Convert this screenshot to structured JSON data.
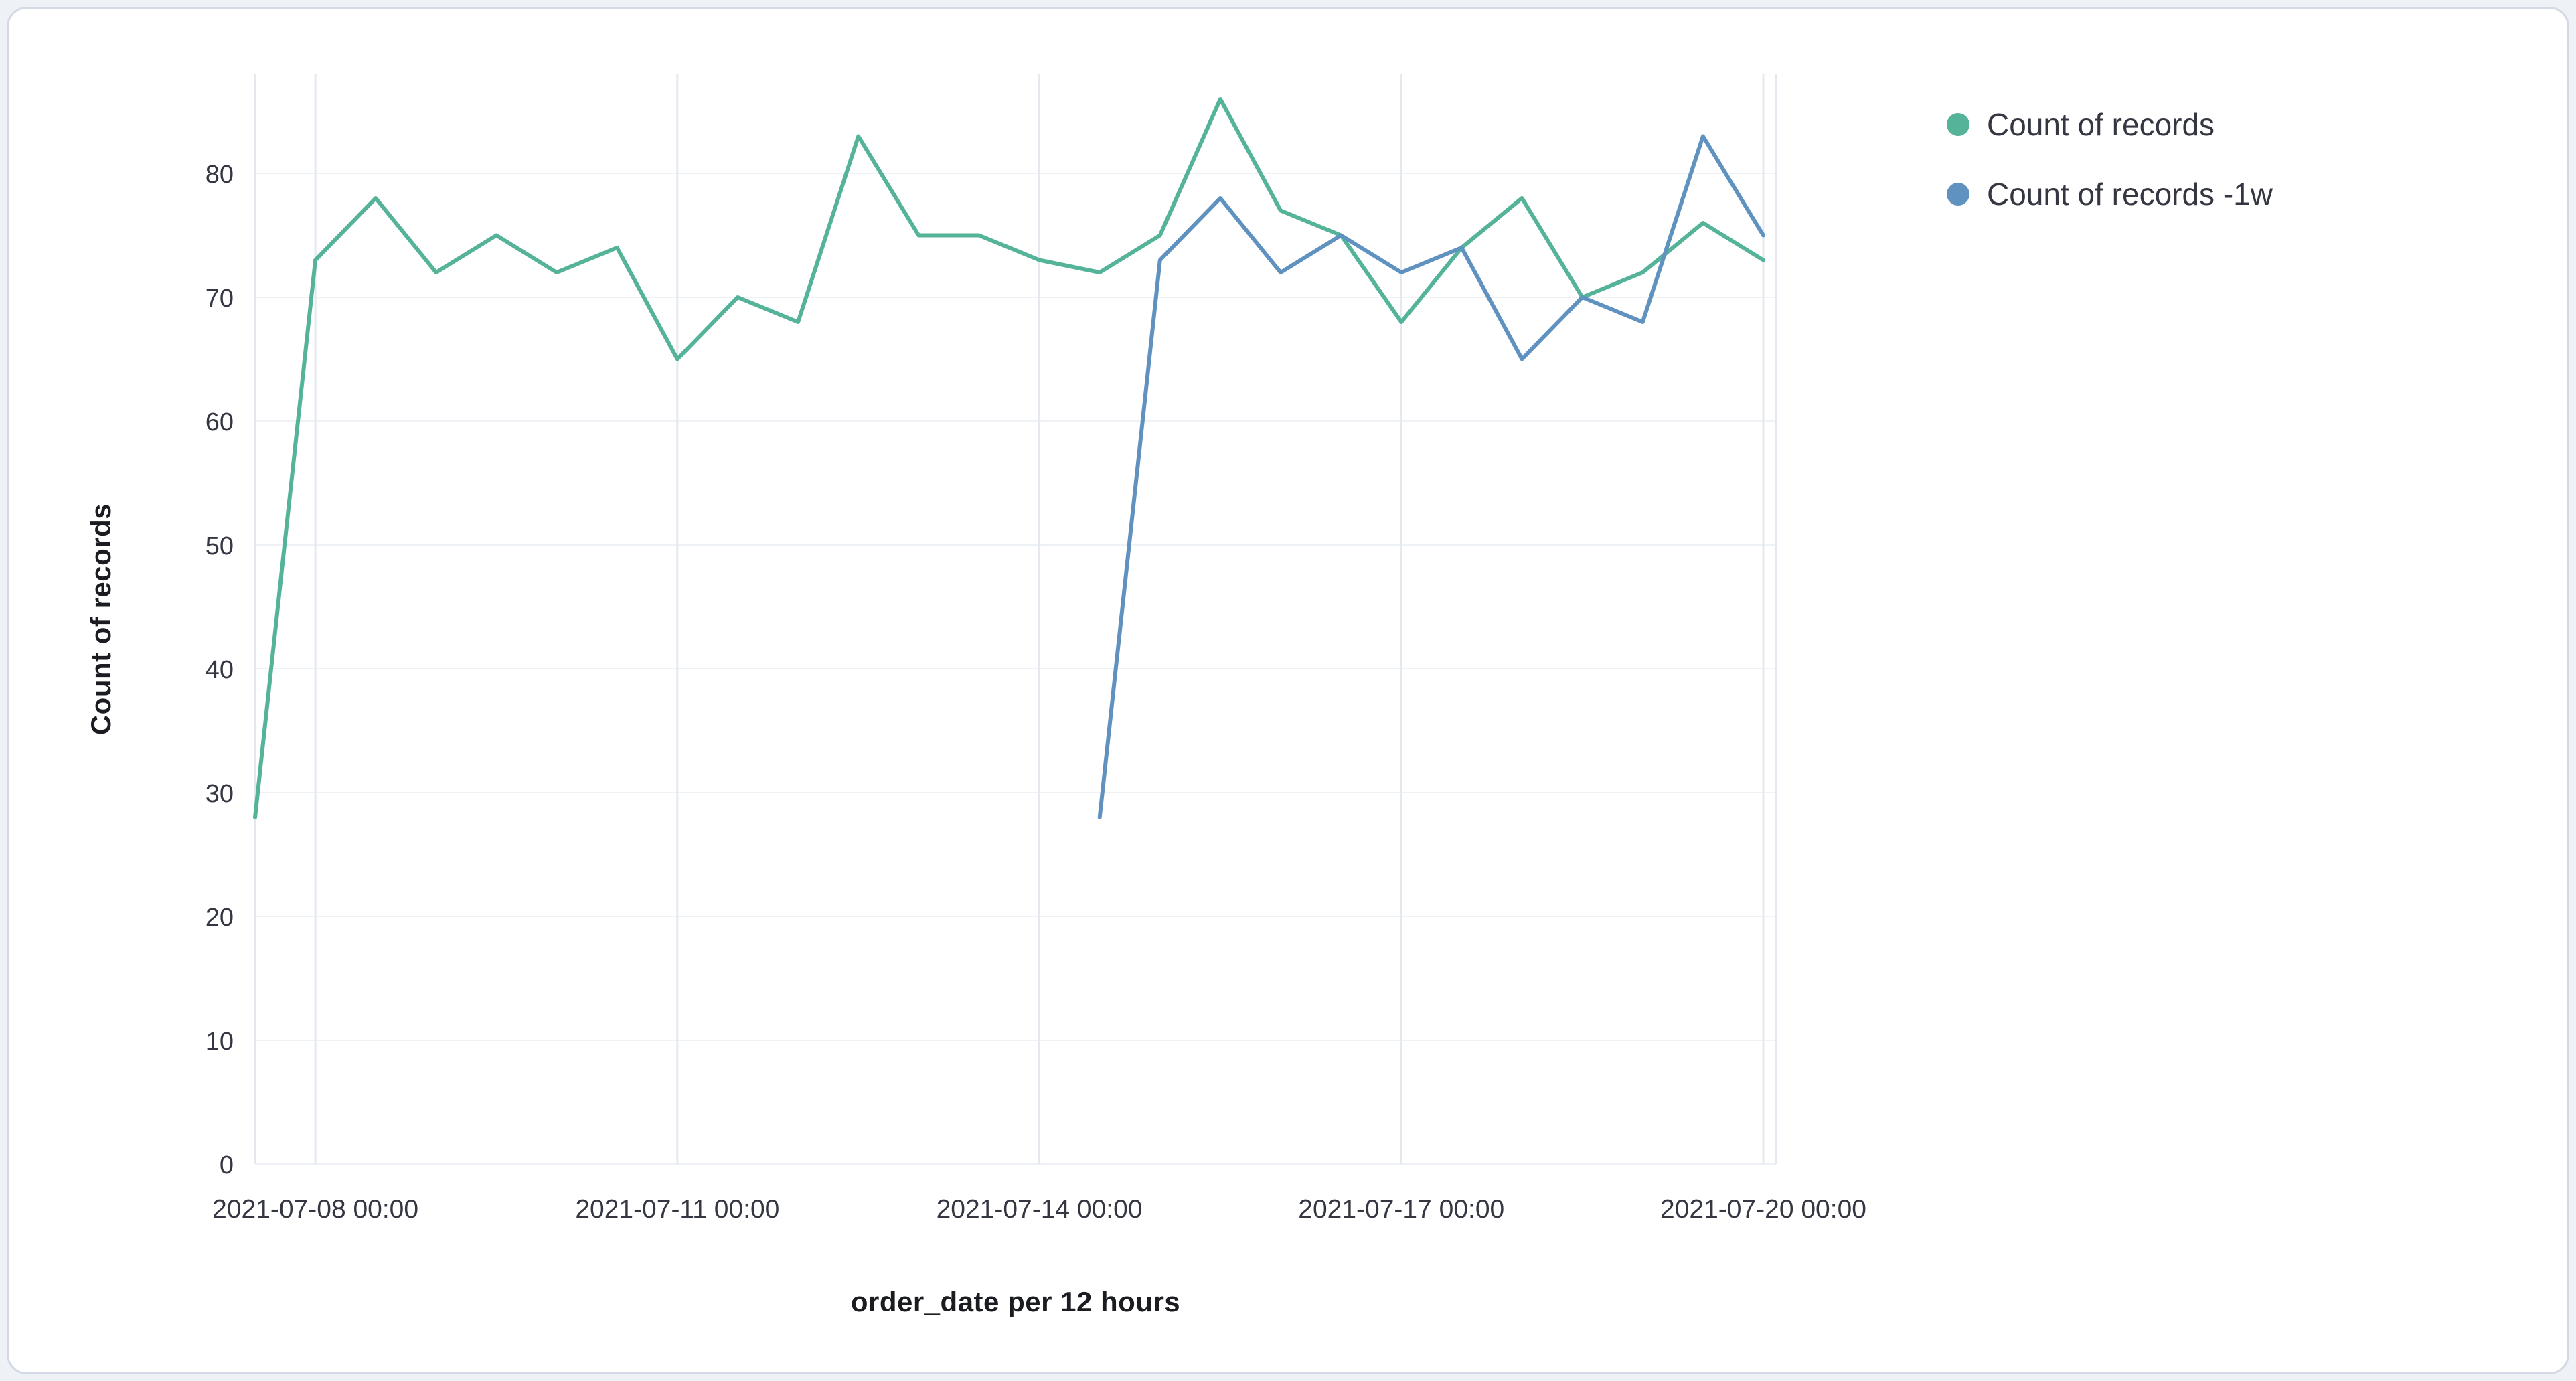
{
  "panel": {
    "background": "#ffffff",
    "border_color": "#d3dae6",
    "page_background": "#eef1f6"
  },
  "chart_data": {
    "type": "line",
    "title": "",
    "xlabel": "order_date per 12 hours",
    "ylabel": "Count of records",
    "x_start": "2021-07-07 12:00",
    "x_interval": "12h",
    "x_tick_labels": [
      "2021-07-08 00:00",
      "2021-07-11 00:00",
      "2021-07-14 00:00",
      "2021-07-17 00:00",
      "2021-07-20 00:00"
    ],
    "x_tick_indices": [
      1,
      7,
      13,
      19,
      25
    ],
    "y_ticks": [
      0,
      10,
      20,
      30,
      40,
      50,
      60,
      70,
      80
    ],
    "ylim": [
      0,
      88
    ],
    "grid": true,
    "legend_position": "top-right",
    "colors": {
      "grid_vertical": "#e4e8ef",
      "grid_horizontal": "#eef1f5",
      "tick_label": "#343741"
    },
    "series": [
      {
        "name": "Count of records",
        "color": "#54b399",
        "start_index": 0,
        "values": [
          28,
          73,
          78,
          72,
          75,
          72,
          74,
          65,
          70,
          68,
          83,
          75,
          75,
          73,
          72,
          75,
          86,
          77,
          75,
          68,
          74,
          78,
          70,
          72,
          76,
          73
        ]
      },
      {
        "name": "Count of records -1w",
        "color": "#6092c0",
        "start_index": 14,
        "values": [
          28,
          73,
          78,
          72,
          75,
          72,
          74,
          65,
          70,
          68,
          83,
          75
        ]
      }
    ]
  }
}
